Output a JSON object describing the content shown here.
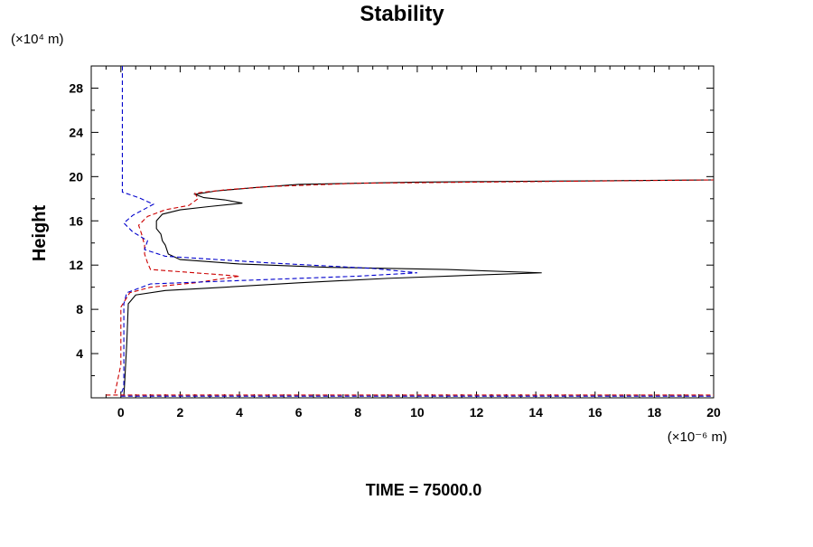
{
  "chart_data": {
    "type": "line",
    "title": "Stability",
    "xlabel": "",
    "ylabel": "Height",
    "y_unit_label": "(×10⁴ m)",
    "x_unit_label": "(×10⁻⁶ m)",
    "footer": "TIME = 75000.0",
    "xlim": [
      -1,
      20
    ],
    "ylim": [
      0,
      30
    ],
    "x_ticks": [
      0,
      2,
      4,
      6,
      8,
      10,
      12,
      14,
      16,
      18,
      20
    ],
    "y_ticks": [
      4,
      8,
      12,
      16,
      20,
      24,
      28
    ],
    "grid": false,
    "legend": "none",
    "series": [
      {
        "color": "#000000",
        "dash": "solid",
        "points": [
          [
            0.1,
            0.2
          ],
          [
            0.12,
            1.0
          ],
          [
            0.2,
            5.0
          ],
          [
            0.25,
            8.5
          ],
          [
            0.5,
            9.3
          ],
          [
            1.5,
            9.7
          ],
          [
            3.5,
            10.0
          ],
          [
            6.0,
            10.4
          ],
          [
            9.0,
            10.8
          ],
          [
            12.0,
            11.1
          ],
          [
            14.2,
            11.3
          ],
          [
            11.0,
            11.6
          ],
          [
            7.0,
            11.8
          ],
          [
            4.0,
            12.1
          ],
          [
            2.0,
            12.5
          ],
          [
            1.6,
            13.0
          ],
          [
            1.5,
            13.8
          ],
          [
            1.4,
            14.2
          ],
          [
            1.35,
            14.8
          ],
          [
            1.2,
            15.3
          ],
          [
            1.2,
            16.0
          ],
          [
            1.4,
            16.6
          ],
          [
            2.0,
            17.0
          ],
          [
            3.0,
            17.3
          ],
          [
            4.1,
            17.6
          ],
          [
            3.5,
            17.9
          ],
          [
            2.8,
            18.1
          ],
          [
            2.5,
            18.4
          ],
          [
            3.2,
            18.7
          ],
          [
            4.5,
            19.0
          ],
          [
            6.0,
            19.3
          ],
          [
            10.0,
            19.5
          ],
          [
            15.0,
            19.6
          ],
          [
            20.0,
            19.7
          ]
        ]
      },
      {
        "color": "#cc0000",
        "dash": "dashed",
        "points": [
          [
            -0.2,
            0.4
          ],
          [
            0.0,
            3.0
          ],
          [
            0.0,
            8.2
          ],
          [
            0.3,
            9.5
          ],
          [
            1.0,
            10.0
          ],
          [
            2.5,
            10.4
          ],
          [
            4.0,
            11.0
          ],
          [
            2.5,
            11.3
          ],
          [
            1.0,
            11.6
          ],
          [
            0.9,
            12.2
          ],
          [
            0.8,
            13.0
          ],
          [
            0.8,
            13.8
          ],
          [
            0.7,
            14.8
          ],
          [
            0.6,
            15.6
          ],
          [
            0.9,
            16.4
          ],
          [
            1.5,
            17.0
          ],
          [
            2.3,
            17.4
          ],
          [
            2.6,
            18.0
          ],
          [
            2.5,
            18.5
          ],
          [
            3.5,
            18.8
          ],
          [
            5.0,
            19.1
          ],
          [
            8.0,
            19.4
          ],
          [
            12.0,
            19.5
          ],
          [
            20.0,
            19.7
          ]
        ]
      },
      {
        "color": "#0000cc",
        "dash": "dashed",
        "points": [
          [
            0.05,
            30.0
          ],
          [
            0.05,
            19.0
          ],
          [
            0.05,
            18.6
          ],
          [
            0.6,
            18.1
          ],
          [
            1.1,
            17.5
          ],
          [
            0.4,
            16.5
          ],
          [
            0.1,
            15.8
          ],
          [
            0.4,
            15.0
          ],
          [
            0.9,
            14.2
          ],
          [
            0.8,
            13.4
          ],
          [
            1.5,
            12.8
          ],
          [
            5.0,
            12.2
          ],
          [
            8.5,
            11.7
          ],
          [
            10.0,
            11.3
          ],
          [
            8.0,
            11.0
          ],
          [
            4.0,
            10.6
          ],
          [
            1.0,
            10.3
          ],
          [
            0.2,
            9.5
          ],
          [
            0.1,
            8.5
          ],
          [
            0.1,
            5.0
          ],
          [
            0.1,
            1.0
          ],
          [
            0.0,
            0.3
          ]
        ]
      },
      {
        "color": "#cc0000",
        "dash": "dashed",
        "points": [
          [
            -0.5,
            0.25
          ],
          [
            20.0,
            0.25
          ]
        ]
      },
      {
        "color": "#0000cc",
        "dash": "dashed",
        "points": [
          [
            0.0,
            0.15
          ],
          [
            20.0,
            0.15
          ]
        ]
      }
    ]
  }
}
